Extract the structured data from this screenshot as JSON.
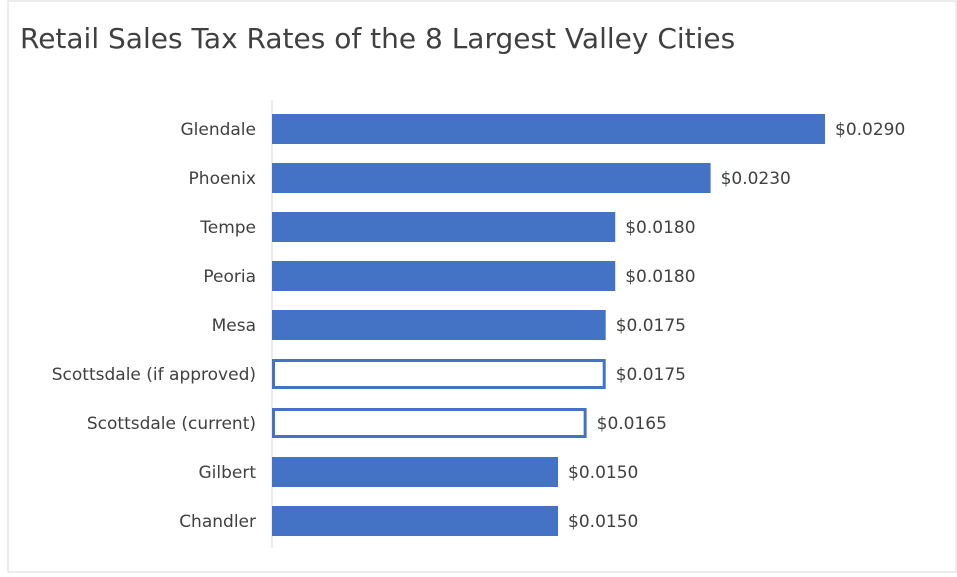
{
  "chart_data": {
    "type": "hbar",
    "title": "Retail Sales Tax Rates of the 8 Largest Valley Cities",
    "categories": [
      "Glendale",
      "Phoenix",
      "Tempe",
      "Peoria",
      "Mesa",
      "Scottsdale (if approved)",
      "Scottsdale (current)",
      "Gilbert",
      "Chandler"
    ],
    "values": [
      0.029,
      0.023,
      0.018,
      0.018,
      0.0175,
      0.0175,
      0.0165,
      0.015,
      0.015
    ],
    "value_labels": [
      "$0.0290",
      "$0.0230",
      "$0.0180",
      "$0.0180",
      "$0.0175",
      "$0.0175",
      "$0.0165",
      "$0.0150",
      "$0.0150"
    ],
    "colors": [
      "#4472c4",
      "#4472c4",
      "#4472c4",
      "#4472c4",
      "#4472c4",
      "#ffffff",
      "#ffffff",
      "#4472c4",
      "#4472c4"
    ],
    "edge_color": "#4472c4"
  }
}
